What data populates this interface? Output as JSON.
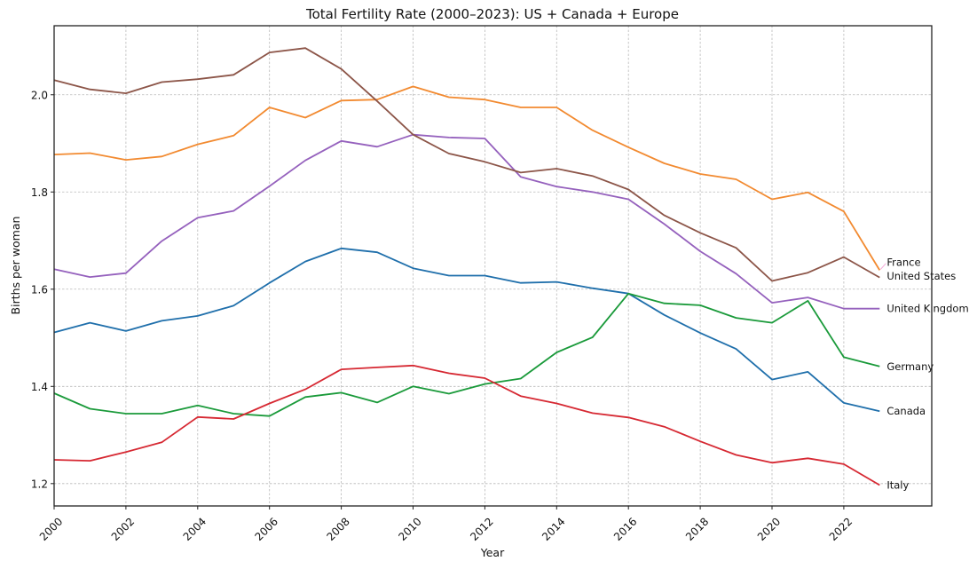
{
  "chart_data": {
    "type": "line",
    "title": "Total Fertility Rate (2000–2023): US + Canada + Europe",
    "xlabel": "Year",
    "ylabel": "Births per woman",
    "xlim": [
      2000,
      2024.45
    ],
    "ylim": [
      1.154,
      2.142
    ],
    "grid": true,
    "legend": "direct labels at line ends (right)",
    "x": [
      2000,
      2001,
      2002,
      2003,
      2004,
      2005,
      2006,
      2007,
      2008,
      2009,
      2010,
      2011,
      2012,
      2013,
      2014,
      2015,
      2016,
      2017,
      2018,
      2019,
      2020,
      2021,
      2022,
      2023
    ],
    "xticks": [
      2000,
      2002,
      2004,
      2006,
      2008,
      2010,
      2012,
      2014,
      2016,
      2018,
      2020,
      2022
    ],
    "xtick_labels": [
      "2000",
      "2002",
      "2004",
      "2006",
      "2008",
      "2010",
      "2012",
      "2014",
      "2016",
      "2018",
      "2020",
      "2022"
    ],
    "yticks": [
      1.2,
      1.4,
      1.6,
      1.8,
      2.0
    ],
    "ytick_labels": [
      "1.2",
      "1.4",
      "1.6",
      "1.8",
      "2.0"
    ],
    "series": [
      {
        "name": "Canada",
        "color": "#1f6fab",
        "values": [
          1.511,
          1.531,
          1.514,
          1.535,
          1.545,
          1.566,
          1.613,
          1.657,
          1.684,
          1.676,
          1.643,
          1.628,
          1.628,
          1.613,
          1.615,
          1.602,
          1.591,
          1.547,
          1.51,
          1.477,
          1.414,
          1.43,
          1.366,
          1.349
        ]
      },
      {
        "name": "France",
        "color": "#f28a30",
        "values": [
          1.877,
          1.88,
          1.866,
          1.873,
          1.898,
          1.916,
          1.974,
          1.953,
          1.988,
          1.99,
          2.017,
          1.995,
          1.99,
          1.974,
          1.974,
          1.927,
          1.892,
          1.859,
          1.837,
          1.826,
          1.785,
          1.799,
          1.76,
          1.639
        ]
      },
      {
        "name": "Germany",
        "color": "#1a9a3a",
        "values": [
          1.386,
          1.354,
          1.344,
          1.344,
          1.361,
          1.344,
          1.339,
          1.378,
          1.387,
          1.367,
          1.4,
          1.385,
          1.405,
          1.416,
          1.47,
          1.501,
          1.591,
          1.571,
          1.567,
          1.541,
          1.531,
          1.576,
          1.46,
          1.441
        ]
      },
      {
        "name": "Italy",
        "color": "#d62832",
        "values": [
          1.249,
          1.247,
          1.265,
          1.285,
          1.337,
          1.333,
          1.365,
          1.394,
          1.435,
          1.439,
          1.443,
          1.427,
          1.417,
          1.38,
          1.365,
          1.345,
          1.336,
          1.317,
          1.287,
          1.259,
          1.243,
          1.252,
          1.24,
          1.197
        ]
      },
      {
        "name": "United Kingdom",
        "color": "#9561bd",
        "values": [
          1.641,
          1.625,
          1.633,
          1.699,
          1.747,
          1.761,
          1.812,
          1.865,
          1.905,
          1.893,
          1.918,
          1.912,
          1.91,
          1.831,
          1.811,
          1.8,
          1.785,
          1.734,
          1.678,
          1.632,
          1.572,
          1.583,
          1.56,
          1.56
        ]
      },
      {
        "name": "United States",
        "color": "#8c5548",
        "values": [
          2.03,
          2.011,
          2.003,
          2.026,
          2.032,
          2.041,
          2.087,
          2.096,
          2.053,
          1.987,
          1.918,
          1.879,
          1.862,
          1.84,
          1.848,
          1.833,
          1.805,
          1.752,
          1.716,
          1.685,
          1.617,
          1.634,
          1.666,
          1.624
        ]
      }
    ],
    "end_labels": [
      {
        "text": "France",
        "series": "France",
        "label_value": 1.655
      },
      {
        "text": "United States",
        "series": "United States",
        "label_value": 1.627
      },
      {
        "text": "United Kingdom",
        "series": "United Kingdom",
        "label_value": 1.56
      },
      {
        "text": "Germany",
        "series": "Germany",
        "label_value": 1.441
      },
      {
        "text": "Canada",
        "series": "Canada",
        "label_value": 1.349
      },
      {
        "text": "Italy",
        "series": "Italy",
        "label_value": 1.197
      }
    ],
    "annotation_line_color": "#f4a8d8"
  }
}
